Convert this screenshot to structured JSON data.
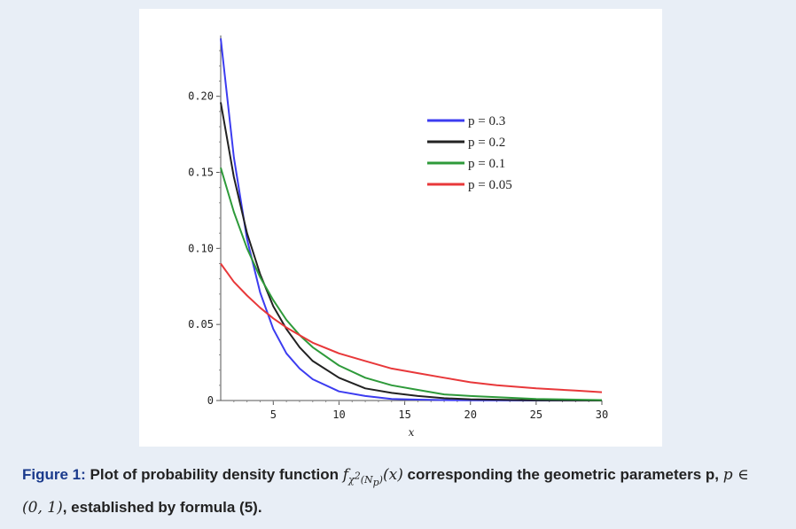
{
  "chart_data": {
    "type": "line",
    "title": "",
    "xlabel": "x",
    "ylabel": "",
    "xlim": [
      1,
      30
    ],
    "ylim": [
      0,
      0.24
    ],
    "x_ticks": [
      5,
      10,
      15,
      20,
      25,
      30
    ],
    "x_tick_labels": [
      "5",
      "10",
      "15",
      "20",
      "25",
      "30"
    ],
    "y_ticks": [
      0,
      0.05,
      0.1,
      0.15,
      0.2
    ],
    "y_tick_labels": [
      "0",
      "0.05",
      "0.10",
      "0.15",
      "0.20"
    ],
    "legend_position": "top-right",
    "grid": false,
    "series": [
      {
        "name": "p = 0.3",
        "color": "#3c3cf0",
        "x": [
          1,
          2,
          3,
          4,
          5,
          6,
          7,
          8,
          10,
          12,
          14,
          16,
          18,
          20,
          25,
          30
        ],
        "y": [
          0.238,
          0.16,
          0.106,
          0.071,
          0.047,
          0.031,
          0.021,
          0.014,
          0.006,
          0.003,
          0.001,
          0.0006,
          0.0003,
          0.0001,
          0.0,
          0.0
        ]
      },
      {
        "name": "p = 0.2",
        "color": "#222222",
        "x": [
          1,
          2,
          3,
          4,
          5,
          6,
          7,
          8,
          10,
          12,
          14,
          16,
          18,
          20,
          25,
          30
        ],
        "y": [
          0.196,
          0.147,
          0.11,
          0.083,
          0.062,
          0.047,
          0.035,
          0.026,
          0.015,
          0.008,
          0.005,
          0.003,
          0.0015,
          0.0008,
          0.0002,
          0.0
        ]
      },
      {
        "name": "p = 0.1",
        "color": "#2e9a3a",
        "x": [
          1,
          2,
          3,
          4,
          5,
          6,
          7,
          8,
          10,
          12,
          14,
          16,
          18,
          20,
          25,
          30
        ],
        "y": [
          0.153,
          0.124,
          0.1,
          0.081,
          0.066,
          0.053,
          0.043,
          0.035,
          0.023,
          0.015,
          0.01,
          0.007,
          0.004,
          0.003,
          0.001,
          0.0003
        ]
      },
      {
        "name": "p = 0.05",
        "color": "#e8383a",
        "x": [
          1,
          2,
          3,
          4,
          5,
          6,
          7,
          8,
          10,
          12,
          14,
          16,
          18,
          20,
          22,
          25,
          28,
          30
        ],
        "y": [
          0.09,
          0.078,
          0.069,
          0.061,
          0.054,
          0.048,
          0.043,
          0.038,
          0.031,
          0.026,
          0.021,
          0.018,
          0.015,
          0.012,
          0.01,
          0.008,
          0.0065,
          0.0055
        ]
      }
    ]
  },
  "caption": {
    "label": "Figure 1",
    "colon": ": ",
    "text1": "Plot of probability density function ",
    "f": "f",
    "chi": "χ",
    "sup": "2",
    "paren_open": "(",
    "N": "N",
    "Nsub": "p",
    "paren_close": ")",
    "arg": "(x)",
    "text2": " corresponding the geometric parameters p, ",
    "p_in": "p ∈",
    "interval": "(0, 1)",
    "text3": ", established by formula (5)."
  }
}
